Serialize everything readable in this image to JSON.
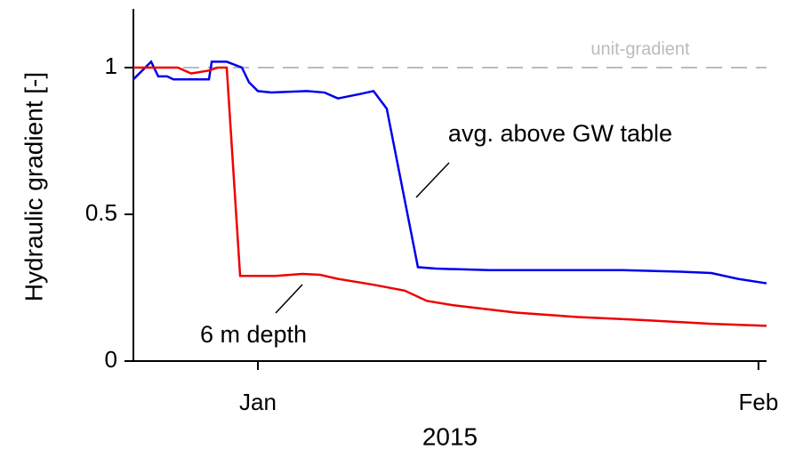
{
  "chart_data": {
    "type": "line",
    "x_label": "2015",
    "y_label": "Hydraulic gradient [-]",
    "xlim": [
      -7.71,
      31.5
    ],
    "xticks": [
      {
        "value": 0,
        "label": "Jan"
      },
      {
        "value": 31,
        "label": "Feb"
      }
    ],
    "ylim": [
      0,
      1.2
    ],
    "yticks": [
      0,
      0.5,
      1
    ],
    "reference_line": {
      "value": 1,
      "label": "unit-gradient",
      "color": "#bbbbbb"
    },
    "annotations": [
      "avg. above GW table",
      "6 m depth"
    ],
    "series": [
      {
        "name": "avg. above GW table",
        "color": "#0000ee",
        "x": [
          -7.71,
          -6.61,
          -6.17,
          -5.62,
          -5.23,
          -3.03,
          -2.86,
          -1.93,
          -0.99,
          -0.55,
          0,
          0.83,
          3.03,
          4.13,
          4.96,
          6.33,
          7.16,
          7.98,
          9.91,
          11.01,
          14.32,
          18.17,
          22.58,
          25.88,
          28.08,
          29.74,
          31.5
        ],
        "values": [
          0.96,
          1.02,
          0.97,
          0.97,
          0.96,
          0.96,
          1.02,
          1.02,
          1.0,
          0.95,
          0.92,
          0.915,
          0.92,
          0.915,
          0.895,
          0.91,
          0.92,
          0.86,
          0.32,
          0.315,
          0.31,
          0.31,
          0.31,
          0.305,
          0.3,
          0.28,
          0.265
        ]
      },
      {
        "name": "6 m depth",
        "color": "#ee0000",
        "x": [
          -7.71,
          -4.96,
          -4.13,
          -3.03,
          -2.48,
          -1.93,
          -1.1,
          1.1,
          2.75,
          3.85,
          4.96,
          7.16,
          9.09,
          10.46,
          12.11,
          15.97,
          19.82,
          23.68,
          28.08,
          31.5
        ],
        "values": [
          1.0,
          1.0,
          0.98,
          0.99,
          1.0,
          1.0,
          0.29,
          0.29,
          0.297,
          0.294,
          0.28,
          0.26,
          0.24,
          0.205,
          0.19,
          0.165,
          0.15,
          0.14,
          0.127,
          0.12
        ]
      }
    ]
  }
}
